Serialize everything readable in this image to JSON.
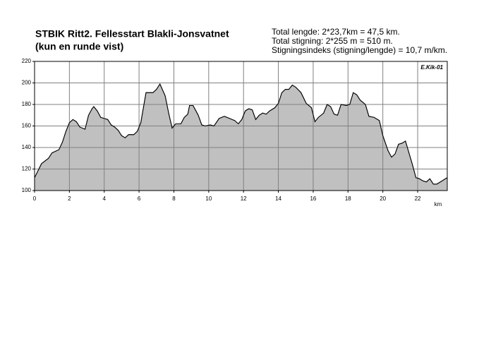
{
  "chart_data": {
    "type": "area",
    "title": "STBIK Ritt2. Fellesstart Blakli-Jonsvatnet",
    "subtitle": "(kun en runde vist)",
    "notes": [
      "Total lengde: 2*23,7km = 47,5 km.",
      "Total stigning: 2*255 m = 510 m.",
      "Stigningsindeks (stigning/lengde) = 10,7 m/km."
    ],
    "annotation": "E.Kik-01",
    "xlabel": "km",
    "color": "#c0c0c0",
    "line_color": "#000000",
    "grid": true,
    "xlim": [
      0,
      23.7
    ],
    "ylim": [
      100,
      220
    ],
    "xticks": [
      0,
      2,
      4,
      6,
      8,
      10,
      12,
      14,
      16,
      18,
      20,
      22
    ],
    "yticks": [
      100,
      120,
      140,
      160,
      180,
      200,
      220
    ],
    "x": [
      0,
      0.4,
      0.8,
      1.0,
      1.4,
      1.6,
      1.8,
      2.0,
      2.2,
      2.4,
      2.6,
      2.9,
      3.1,
      3.3,
      3.4,
      3.6,
      3.8,
      4.0,
      4.2,
      4.4,
      4.6,
      4.8,
      5.0,
      5.2,
      5.4,
      5.7,
      5.9,
      6.1,
      6.4,
      6.8,
      7.0,
      7.2,
      7.5,
      7.7,
      7.9,
      8.1,
      8.4,
      8.6,
      8.8,
      8.9,
      9.1,
      9.4,
      9.6,
      9.8,
      10.1,
      10.3,
      10.6,
      10.9,
      11.2,
      11.5,
      11.7,
      11.9,
      12.1,
      12.3,
      12.5,
      12.7,
      12.9,
      13.1,
      13.3,
      13.5,
      13.8,
      14.0,
      14.2,
      14.4,
      14.6,
      14.8,
      15.0,
      15.3,
      15.6,
      15.9,
      16.1,
      16.3,
      16.6,
      16.8,
      17.0,
      17.2,
      17.4,
      17.6,
      17.9,
      18.1,
      18.3,
      18.5,
      18.7,
      19.0,
      19.2,
      19.5,
      19.8,
      20.0,
      20.3,
      20.5,
      20.7,
      20.9,
      21.1,
      21.3,
      21.5,
      21.7,
      21.9,
      22.1,
      22.3,
      22.5,
      22.7,
      22.9,
      23.1,
      23.3,
      23.7
    ],
    "values": [
      112,
      125,
      130,
      135,
      138,
      145,
      155,
      163,
      166,
      164,
      159,
      157,
      170,
      176,
      178,
      174,
      168,
      167,
      166,
      161,
      159,
      156,
      151,
      149,
      152,
      152,
      155,
      163,
      191,
      191,
      194,
      199,
      188,
      172,
      158,
      162,
      162,
      168,
      171,
      179,
      179,
      170,
      161,
      160,
      161,
      160,
      167,
      169,
      167,
      165,
      162,
      166,
      174,
      176,
      175,
      166,
      170,
      172,
      171,
      174,
      177,
      181,
      191,
      194,
      194,
      198,
      196,
      191,
      181,
      177,
      164,
      168,
      172,
      180,
      178,
      171,
      170,
      180,
      179,
      180,
      191,
      189,
      184,
      180,
      169,
      168,
      165,
      151,
      137,
      131,
      134,
      143,
      144,
      146,
      135,
      124,
      112,
      111,
      109,
      108,
      111,
      106,
      106,
      108,
      112
    ]
  }
}
